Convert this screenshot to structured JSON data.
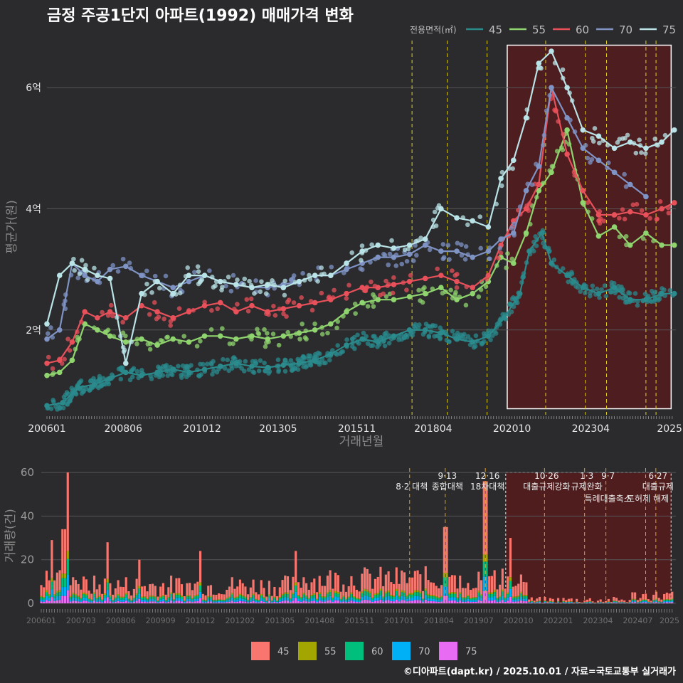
{
  "title": "금정 주공1단지 아파트(1992) 매매가격 변화",
  "footer": "©디아파트(dapt.kr) / 2025.10.01 / 자료=국토교통부 실거래가",
  "colors": {
    "bg": "#2b2b2d",
    "grid": "#555558",
    "s45": "#2a8a8c",
    "s55": "#8fd46e",
    "s60": "#e8505a",
    "s70": "#7f93c4",
    "s75": "#b9e3e6",
    "v45": "#f8766d",
    "v55": "#a3a500",
    "v60": "#00bf7d",
    "v70": "#00b0f6",
    "v75": "#e76bf3",
    "highlight": "#5a1a1c",
    "policy": "#e0d020"
  },
  "chart_data": [
    {
      "type": "line",
      "title": "금정 주공1단지 아파트(1992) 매매가격 변화",
      "xlabel": "거래년월",
      "ylabel": "평균가(원)",
      "legend_title": "전용면적(㎡)",
      "x_range": [
        2006.0,
        2025.95
      ],
      "ylim": [
        0.6,
        6.8
      ],
      "xticks": [
        {
          "label": "200601",
          "x": 2006.0
        },
        {
          "label": "200806",
          "x": 2008.42
        },
        {
          "label": "201012",
          "x": 2010.92
        },
        {
          "label": "201305",
          "x": 2013.33
        },
        {
          "label": "201511",
          "x": 2015.83
        },
        {
          "label": "201804",
          "x": 2018.25
        },
        {
          "label": "202010",
          "x": 2020.75
        },
        {
          "label": "202304",
          "x": 2023.25
        },
        {
          "label": "2025",
          "x": 2025.75
        }
      ],
      "yticks": [
        {
          "label": "2억",
          "v": 2
        },
        {
          "label": "4억",
          "v": 4
        },
        {
          "label": "6억",
          "v": 6
        }
      ],
      "policy_lines": [
        2017.58,
        2018.7,
        2019.96,
        2021.82,
        2023.08,
        2023.75,
        2025.0,
        2025.32
      ],
      "highlight": {
        "x0": 2020.6,
        "x1": 2025.8,
        "y0": 0.7,
        "y1": 6.7
      },
      "series": [
        {
          "name": "45",
          "color_key": "s45",
          "x": [
            2006.0,
            2006.5,
            2007.0,
            2007.5,
            2008.0,
            2008.5,
            2009.0,
            2009.5,
            2010.0,
            2010.5,
            2011.0,
            2011.5,
            2012.0,
            2012.5,
            2013.0,
            2013.5,
            2014.0,
            2014.5,
            2015.0,
            2015.5,
            2016.0,
            2016.5,
            2017.0,
            2017.5,
            2018.0,
            2018.5,
            2019.0,
            2019.5,
            2020.0,
            2020.5,
            2021.0,
            2021.3,
            2021.7,
            2022.0,
            2022.5,
            2023.0,
            2023.5,
            2024.0,
            2024.5,
            2025.0,
            2025.5,
            2025.9
          ],
          "values": [
            0.75,
            0.8,
            1.05,
            1.1,
            1.2,
            1.3,
            1.25,
            1.3,
            1.35,
            1.3,
            1.35,
            1.4,
            1.45,
            1.4,
            1.38,
            1.42,
            1.45,
            1.5,
            1.6,
            1.75,
            1.85,
            1.8,
            1.9,
            2.0,
            2.0,
            1.95,
            1.85,
            1.8,
            1.9,
            2.2,
            2.6,
            3.3,
            3.6,
            3.1,
            2.9,
            2.7,
            2.6,
            2.7,
            2.5,
            2.5,
            2.6,
            2.6
          ]
        },
        {
          "name": "55",
          "color_key": "s55",
          "x": [
            2006.0,
            2006.4,
            2006.8,
            2007.2,
            2007.6,
            2008.0,
            2008.5,
            2009.0,
            2009.5,
            2010.0,
            2010.5,
            2011.0,
            2011.5,
            2012.0,
            2012.5,
            2013.0,
            2013.5,
            2014.0,
            2014.5,
            2015.0,
            2015.5,
            2016.0,
            2016.5,
            2017.0,
            2017.5,
            2018.0,
            2018.5,
            2019.0,
            2019.5,
            2020.0,
            2020.4,
            2020.8,
            2021.2,
            2021.6,
            2022.0,
            2022.5,
            2023.0,
            2023.5,
            2024.0,
            2024.5,
            2025.0,
            2025.5,
            2025.9
          ],
          "values": [
            1.25,
            1.3,
            1.5,
            2.1,
            2.0,
            1.9,
            1.8,
            1.85,
            1.75,
            1.85,
            1.8,
            1.9,
            1.9,
            1.85,
            1.9,
            1.85,
            1.9,
            1.95,
            2.0,
            2.1,
            2.3,
            2.45,
            2.5,
            2.5,
            2.55,
            2.6,
            2.7,
            2.5,
            2.6,
            2.8,
            3.2,
            3.1,
            3.6,
            4.3,
            4.6,
            5.3,
            4.1,
            3.55,
            3.7,
            3.4,
            3.6,
            3.4,
            3.4
          ]
        },
        {
          "name": "60",
          "color_key": "s60",
          "x": [
            2006.0,
            2006.4,
            2006.8,
            2007.2,
            2007.6,
            2008.0,
            2008.5,
            2009.0,
            2009.5,
            2010.0,
            2010.5,
            2011.0,
            2011.5,
            2012.0,
            2012.5,
            2013.0,
            2013.5,
            2014.0,
            2014.5,
            2015.0,
            2015.5,
            2016.0,
            2016.5,
            2017.0,
            2017.5,
            2018.0,
            2018.5,
            2019.0,
            2019.5,
            2020.0,
            2020.4,
            2020.8,
            2021.2,
            2021.6,
            2022.0,
            2022.5,
            2023.0,
            2023.5,
            2024.0,
            2024.5,
            2025.0,
            2025.5,
            2025.9
          ],
          "values": [
            1.45,
            1.5,
            1.8,
            2.3,
            2.2,
            2.3,
            2.2,
            2.4,
            2.3,
            2.2,
            2.3,
            2.4,
            2.45,
            2.3,
            2.4,
            2.3,
            2.35,
            2.4,
            2.45,
            2.5,
            2.6,
            2.7,
            2.7,
            2.75,
            2.8,
            2.85,
            2.9,
            2.8,
            2.7,
            2.9,
            3.4,
            3.8,
            4.0,
            4.4,
            6.0,
            4.9,
            4.3,
            3.9,
            3.9,
            3.95,
            3.9,
            4.0,
            4.1
          ]
        },
        {
          "name": "70",
          "color_key": "s70",
          "x": [
            2006.0,
            2006.4,
            2006.8,
            2007.2,
            2007.6,
            2008.0,
            2008.5,
            2009.0,
            2009.5,
            2010.0,
            2010.5,
            2011.0,
            2011.5,
            2012.0,
            2012.5,
            2013.0,
            2013.5,
            2014.0,
            2014.5,
            2015.0,
            2015.5,
            2016.0,
            2016.5,
            2017.0,
            2017.5,
            2018.0,
            2018.5,
            2019.0,
            2019.5,
            2020.0,
            2020.4,
            2020.8,
            2021.2,
            2021.6,
            2022.0,
            2022.5,
            2023.0,
            2023.5,
            2024.0,
            2024.5,
            2025.0
          ],
          "values": [
            1.85,
            2.0,
            3.1,
            2.9,
            2.8,
            3.0,
            3.05,
            2.9,
            2.8,
            2.7,
            2.8,
            2.9,
            2.8,
            2.75,
            2.7,
            2.7,
            2.75,
            2.8,
            2.9,
            2.9,
            3.0,
            3.1,
            3.2,
            3.2,
            3.25,
            3.4,
            3.3,
            3.3,
            3.2,
            3.3,
            3.5,
            3.6,
            4.3,
            4.7,
            6.0,
            5.5,
            5.0,
            4.8,
            4.6,
            4.4,
            4.2
          ]
        },
        {
          "name": "75",
          "color_key": "s75",
          "x": [
            2006.0,
            2006.4,
            2006.8,
            2007.2,
            2007.6,
            2008.0,
            2008.5,
            2009.0,
            2009.5,
            2010.0,
            2010.5,
            2011.0,
            2011.5,
            2012.0,
            2012.5,
            2013.0,
            2013.5,
            2014.0,
            2014.5,
            2015.0,
            2015.5,
            2016.0,
            2016.5,
            2017.0,
            2017.5,
            2018.0,
            2018.5,
            2019.0,
            2019.5,
            2020.0,
            2020.4,
            2020.8,
            2021.2,
            2021.6,
            2022.0,
            2022.5,
            2023.0,
            2023.5,
            2024.0,
            2024.5,
            2025.0,
            2025.5,
            2025.9
          ],
          "values": [
            2.1,
            2.9,
            3.1,
            3.0,
            2.9,
            2.85,
            1.45,
            2.6,
            2.8,
            2.6,
            2.9,
            2.9,
            2.8,
            2.75,
            2.7,
            2.75,
            2.7,
            2.8,
            2.9,
            2.9,
            3.1,
            3.3,
            3.4,
            3.35,
            3.4,
            3.5,
            4.0,
            3.85,
            3.8,
            3.7,
            4.5,
            4.8,
            5.5,
            6.4,
            6.6,
            6.0,
            5.3,
            5.2,
            5.0,
            5.1,
            5.0,
            5.1,
            5.3
          ]
        }
      ]
    },
    {
      "type": "bar",
      "xlabel": "",
      "ylabel": "거래량(건)",
      "ylim": [
        0,
        62
      ],
      "x_range": [
        2006.0,
        2025.95
      ],
      "yticks": [
        0,
        20,
        40,
        60
      ],
      "xticks": [
        "200601",
        "200703",
        "200806",
        "200909",
        "201012",
        "201202",
        "201305",
        "201408",
        "201511",
        "201701",
        "201804",
        "201907",
        "202010",
        "202201",
        "202304",
        "202407",
        "2025"
      ],
      "legend": [
        "45",
        "55",
        "60",
        "70",
        "75"
      ],
      "highlight": {
        "x0": 2020.6,
        "x1": 2025.8
      },
      "policy_events": [
        {
          "x": 2017.58,
          "date": "",
          "text": "8·2 대책"
        },
        {
          "x": 2018.7,
          "date": "9·13",
          "text": "종합대책"
        },
        {
          "x": 2019.96,
          "date": "12·16",
          "text": "18차대책"
        },
        {
          "x": 2021.82,
          "date": "10·26",
          "text": "대출규제강화"
        },
        {
          "x": 2023.08,
          "date": "1·3",
          "text": "규제완화"
        },
        {
          "x": 2023.75,
          "date": "9·7",
          "text": "특례대출축소"
        },
        {
          "x": 2025.0,
          "date": "",
          "text": "토허제 해제"
        },
        {
          "x": 2025.32,
          "date": "6·27",
          "text": "대출규제"
        }
      ],
      "peaks": [
        {
          "x": 2006.85,
          "v": 60
        },
        {
          "x": 2006.7,
          "v": 34
        },
        {
          "x": 2006.3,
          "v": 29
        },
        {
          "x": 2008.05,
          "v": 28
        },
        {
          "x": 2018.7,
          "v": 35
        },
        {
          "x": 2019.95,
          "v": 56
        },
        {
          "x": 2020.75,
          "v": 30
        },
        {
          "x": 2014.0,
          "v": 24
        },
        {
          "x": 2009.1,
          "v": 20
        },
        {
          "x": 2011.0,
          "v": 24
        }
      ]
    }
  ]
}
